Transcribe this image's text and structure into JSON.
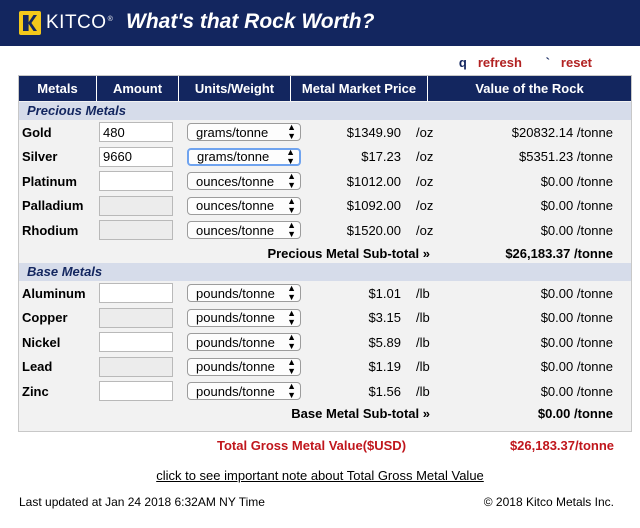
{
  "header": {
    "brand": "KITCO",
    "brand_mark": "®",
    "title": "What's that Rock Worth?"
  },
  "actions": {
    "refresh_icon": "q",
    "refresh_label": "refresh",
    "reset_icon": "`",
    "reset_label": "reset"
  },
  "table": {
    "columns": [
      "Metals",
      "Amount",
      "Units/Weight",
      "Metal Market Price",
      "Value of the Rock"
    ],
    "precious": {
      "heading": "Precious Metals",
      "rows": [
        {
          "metal": "Gold",
          "amount": "480",
          "unit": "grams/tonne",
          "price": "$1349.90",
          "per": "/oz",
          "value": "$20832.14 /tonne"
        },
        {
          "metal": "Silver",
          "amount": "9660",
          "unit": "grams/tonne",
          "price": "$17.23",
          "per": "/oz",
          "value": "$5351.23 /tonne"
        },
        {
          "metal": "Platinum",
          "amount": "",
          "unit": "ounces/tonne",
          "price": "$1012.00",
          "per": "/oz",
          "value": "$0.00 /tonne"
        },
        {
          "metal": "Palladium",
          "amount": "",
          "unit": "ounces/tonne",
          "price": "$1092.00",
          "per": "/oz",
          "value": "$0.00 /tonne"
        },
        {
          "metal": "Rhodium",
          "amount": "",
          "unit": "ounces/tonne",
          "price": "$1520.00",
          "per": "/oz",
          "value": "$0.00 /tonne"
        }
      ],
      "subtotal_label": "Precious Metal Sub-total »",
      "subtotal_value": "$26,183.37 /tonne"
    },
    "base": {
      "heading": "Base Metals",
      "rows": [
        {
          "metal": "Aluminum",
          "amount": "",
          "unit": "pounds/tonne",
          "price": "$1.01",
          "per": "/lb",
          "value": "$0.00 /tonne"
        },
        {
          "metal": "Copper",
          "amount": "",
          "unit": "pounds/tonne",
          "price": "$3.15",
          "per": "/lb",
          "value": "$0.00 /tonne"
        },
        {
          "metal": "Nickel",
          "amount": "",
          "unit": "pounds/tonne",
          "price": "$5.89",
          "per": "/lb",
          "value": "$0.00 /tonne"
        },
        {
          "metal": "Lead",
          "amount": "",
          "unit": "pounds/tonne",
          "price": "$1.19",
          "per": "/lb",
          "value": "$0.00 /tonne"
        },
        {
          "metal": "Zinc",
          "amount": "",
          "unit": "pounds/tonne",
          "price": "$1.56",
          "per": "/lb",
          "value": "$0.00 /tonne"
        }
      ],
      "subtotal_label": "Base Metal Sub-total »",
      "subtotal_value": "$0.00 /tonne"
    }
  },
  "gross": {
    "label": "Total Gross Metal Value($USD)",
    "value": "$26,183.37/tonne"
  },
  "note_link": "click to see important note about Total Gross Metal Value",
  "footer": {
    "updated": "Last updated at Jan 24 2018 6:32AM NY Time",
    "copyright": "© 2018 Kitco Metals Inc."
  },
  "colors": {
    "navy": "#13265f",
    "accent_red": "#c0161c",
    "section_band": "#d6dcea",
    "table_bg": "#f2f2f2"
  }
}
